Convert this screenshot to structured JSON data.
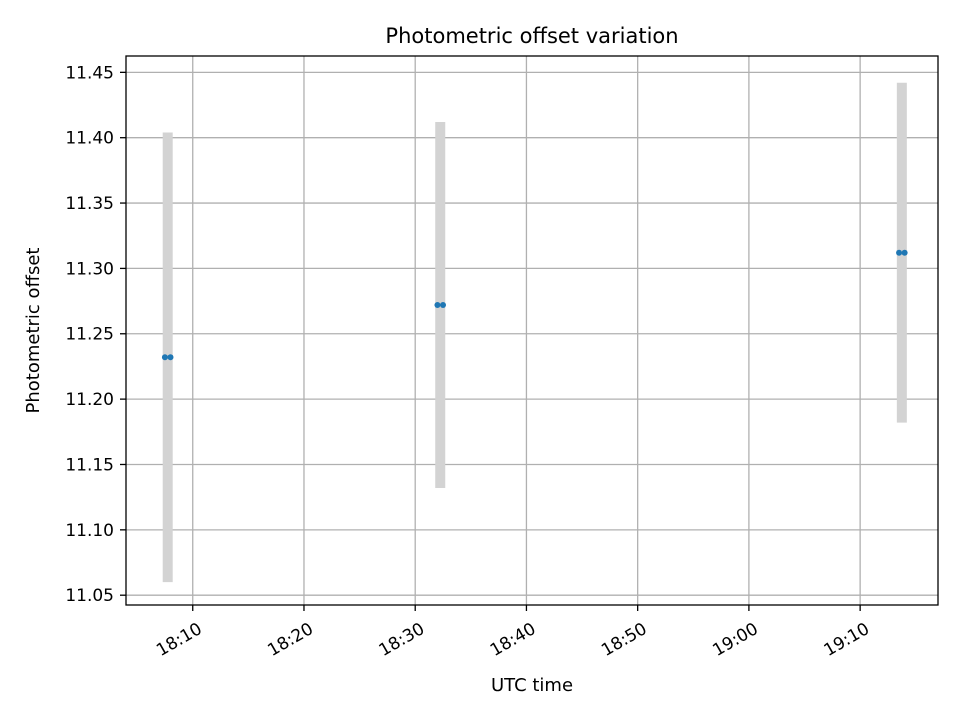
{
  "chart_data": {
    "type": "scatter",
    "title": "Photometric offset variation",
    "xlabel": "UTC time",
    "ylabel": "Photometric offset",
    "x_axis": {
      "kind": "time",
      "range": [
        "18:04:00",
        "19:17:00"
      ],
      "ticks": [
        "18:10",
        "18:20",
        "18:30",
        "18:40",
        "18:50",
        "19:00",
        "19:10"
      ]
    },
    "y_axis": {
      "range": [
        11.0425,
        11.4625
      ],
      "ticks": [
        "11.05",
        "11.10",
        "11.15",
        "11.20",
        "11.25",
        "11.30",
        "11.35",
        "11.40",
        "11.45"
      ]
    },
    "grid": true,
    "colors": {
      "point": "#1f77b4",
      "errorbar": "#d3d3d3",
      "grid": "#b0b0b0"
    },
    "series": [
      {
        "points": [
          {
            "x": [
              "18:07:30",
              "18:08:00"
            ],
            "y": 11.232,
            "err": 0.172
          },
          {
            "x": [
              "18:32:00",
              "18:32:30"
            ],
            "y": 11.272,
            "err": 0.14
          },
          {
            "x": [
              "19:13:30",
              "19:14:00"
            ],
            "y": 11.312,
            "err": 0.13
          }
        ]
      }
    ]
  }
}
